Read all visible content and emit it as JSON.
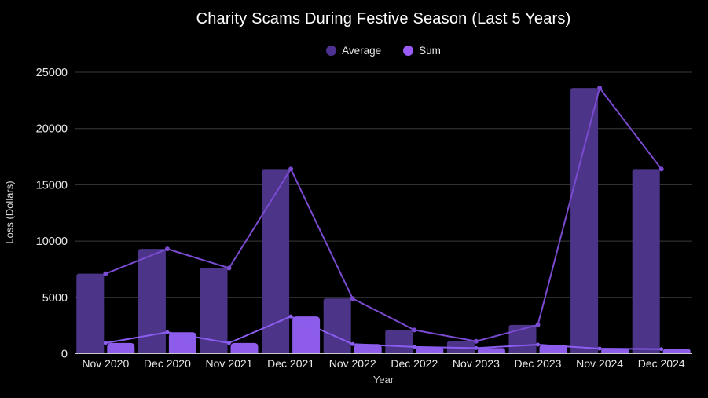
{
  "title": "Charity Scams During Festive Season (Last 5 Years)",
  "legend": [
    {
      "label": "Average",
      "color": "#4c3192"
    },
    {
      "label": "Sum",
      "color": "#9a5cf8"
    }
  ],
  "chart_data": {
    "type": "bar",
    "title": "Charity Scams During Festive Season (Last 5 Years)",
    "categories": [
      "Nov 2020",
      "Dec 2020",
      "Nov 2021",
      "Dec 2021",
      "Nov 2022",
      "Dec 2022",
      "Nov 2023",
      "Dec 2023",
      "Nov 2024",
      "Dec 2024"
    ],
    "series": [
      {
        "name": "Average",
        "bar_color": "#4c3588",
        "line_color": "#7a4ad0",
        "values": [
          7100,
          9300,
          7600,
          16400,
          4900,
          2100,
          1100,
          2550,
          23600,
          16400
        ]
      },
      {
        "name": "Sum",
        "bar_color": "#8d5ceb",
        "line_color": "#8b5cf0",
        "values": [
          950,
          1900,
          950,
          3300,
          850,
          600,
          500,
          800,
          450,
          400
        ]
      }
    ],
    "xlabel": "Year",
    "ylabel": "Loss (Dollars)",
    "ylim": [
      0,
      25000
    ],
    "yticks": [
      0,
      5000,
      10000,
      15000,
      20000,
      25000
    ],
    "grid": true,
    "legend_position": "top",
    "colors": {
      "background": "#000000",
      "grid_line": "#3a3a3a",
      "axis_line": "#c9c9c9",
      "tick_label": "#e8e8e8",
      "axis_title": "#d9d9d9",
      "title_text": "#ffffff"
    }
  }
}
